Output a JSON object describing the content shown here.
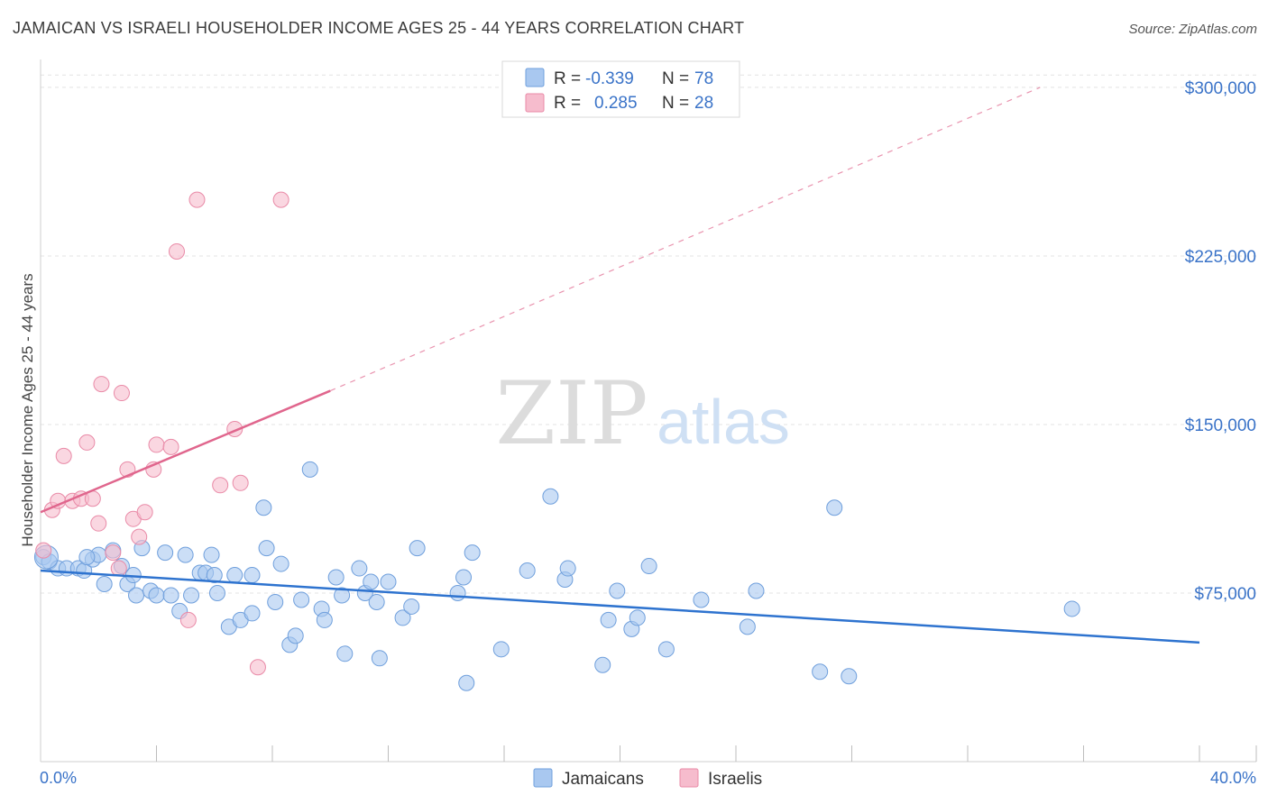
{
  "title": "JAMAICAN VS ISRAELI HOUSEHOLDER INCOME AGES 25 - 44 YEARS CORRELATION CHART",
  "source": "Source: ZipAtlas.com",
  "watermark": {
    "zip": "ZIP",
    "atlas": "atlas"
  },
  "colors": {
    "jamaican_fill": "#a9c8f0",
    "jamaican_stroke": "#6f9fdc",
    "jamaican_line": "#2e73cf",
    "israeli_fill": "#f6bccd",
    "israeli_stroke": "#e98aa7",
    "israeli_line": "#e0668d",
    "axis_label": "#3a73c8",
    "grid": "#e3e3e3"
  },
  "legend": {
    "rows": [
      {
        "r_label": "R =",
        "r_value": "-0.339",
        "n_label": "N =",
        "n_value": "78"
      },
      {
        "r_label": "R =",
        "r_value": "0.285",
        "n_label": "N =",
        "n_value": "28"
      }
    ]
  },
  "chart_data": {
    "type": "scatter",
    "title": "JAMAICAN VS ISRAELI HOUSEHOLDER INCOME AGES 25 - 44 YEARS CORRELATION CHART",
    "xlabel": "",
    "ylabel": "Householder Income Ages 25 - 44 years",
    "xlim": [
      0,
      40
    ],
    "ylim": [
      0,
      310000
    ],
    "x_tick_labels": [
      {
        "value": 0,
        "label": "0.0%"
      },
      {
        "value": 40,
        "label": "40.0%"
      }
    ],
    "y_tick_labels": [
      {
        "value": 75000,
        "label": "$75,000"
      },
      {
        "value": 150000,
        "label": "$150,000"
      },
      {
        "value": 225000,
        "label": "$225,000"
      },
      {
        "value": 300000,
        "label": "$300,000"
      }
    ],
    "legend_position": "bottom-center",
    "series": [
      {
        "name": "Jamaicans",
        "r": -0.339,
        "n": 78,
        "trend": {
          "x0": 0,
          "y0": 85000,
          "x1": 40,
          "y1": 53000
        },
        "points": [
          [
            0.1,
            91000
          ],
          [
            0.3,
            89000
          ],
          [
            0.6,
            86000
          ],
          [
            0.9,
            86000
          ],
          [
            1.3,
            86000
          ],
          [
            1.5,
            85000
          ],
          [
            1.8,
            90000
          ],
          [
            2.0,
            92000
          ],
          [
            2.2,
            79000
          ],
          [
            2.5,
            94000
          ],
          [
            2.8,
            87000
          ],
          [
            3.0,
            79000
          ],
          [
            3.3,
            74000
          ],
          [
            3.5,
            95000
          ],
          [
            3.8,
            76000
          ],
          [
            4.0,
            74000
          ],
          [
            4.3,
            93000
          ],
          [
            4.5,
            74000
          ],
          [
            4.8,
            67000
          ],
          [
            5.0,
            92000
          ],
          [
            5.2,
            74000
          ],
          [
            5.5,
            84000
          ],
          [
            5.7,
            84000
          ],
          [
            5.9,
            92000
          ],
          [
            6.1,
            75000
          ],
          [
            6.5,
            60000
          ],
          [
            6.7,
            83000
          ],
          [
            6.9,
            63000
          ],
          [
            7.3,
            66000
          ],
          [
            7.3,
            83000
          ],
          [
            7.7,
            113000
          ],
          [
            7.8,
            95000
          ],
          [
            8.3,
            88000
          ],
          [
            8.1,
            71000
          ],
          [
            8.6,
            52000
          ],
          [
            8.8,
            56000
          ],
          [
            9.0,
            72000
          ],
          [
            9.3,
            130000
          ],
          [
            9.7,
            68000
          ],
          [
            9.8,
            63000
          ],
          [
            10.2,
            82000
          ],
          [
            10.4,
            74000
          ],
          [
            10.5,
            48000
          ],
          [
            11.0,
            86000
          ],
          [
            11.2,
            75000
          ],
          [
            11.4,
            80000
          ],
          [
            11.6,
            71000
          ],
          [
            11.7,
            46000
          ],
          [
            12.0,
            80000
          ],
          [
            12.5,
            64000
          ],
          [
            12.8,
            69000
          ],
          [
            13.0,
            95000
          ],
          [
            14.4,
            75000
          ],
          [
            14.6,
            82000
          ],
          [
            14.7,
            35000
          ],
          [
            14.9,
            93000
          ],
          [
            15.9,
            50000
          ],
          [
            16.8,
            85000
          ],
          [
            17.6,
            118000
          ],
          [
            18.1,
            81000
          ],
          [
            18.2,
            86000
          ],
          [
            19.4,
            43000
          ],
          [
            19.6,
            63000
          ],
          [
            19.9,
            76000
          ],
          [
            20.4,
            59000
          ],
          [
            20.6,
            64000
          ],
          [
            21.0,
            87000
          ],
          [
            21.6,
            50000
          ],
          [
            22.8,
            72000
          ],
          [
            24.4,
            60000
          ],
          [
            24.7,
            76000
          ],
          [
            26.9,
            40000
          ],
          [
            27.4,
            113000
          ],
          [
            27.9,
            38000
          ],
          [
            35.6,
            68000
          ],
          [
            1.6,
            91000
          ],
          [
            3.2,
            83000
          ],
          [
            6.0,
            83000
          ]
        ]
      },
      {
        "name": "Israelis",
        "r": 0.285,
        "n": 28,
        "trend": {
          "x0": 0,
          "y0": 111000,
          "x1": 10,
          "y1": 165000,
          "ext_x1": 34.5,
          "ext_y1": 300000
        },
        "points": [
          [
            0.1,
            94000
          ],
          [
            0.4,
            112000
          ],
          [
            0.6,
            116000
          ],
          [
            0.8,
            136000
          ],
          [
            1.1,
            116000
          ],
          [
            1.4,
            117000
          ],
          [
            1.6,
            142000
          ],
          [
            1.8,
            117000
          ],
          [
            2.0,
            106000
          ],
          [
            2.1,
            168000
          ],
          [
            2.5,
            93000
          ],
          [
            2.7,
            86000
          ],
          [
            2.8,
            164000
          ],
          [
            3.0,
            130000
          ],
          [
            3.2,
            108000
          ],
          [
            3.4,
            100000
          ],
          [
            3.6,
            111000
          ],
          [
            3.9,
            130000
          ],
          [
            4.0,
            141000
          ],
          [
            4.5,
            140000
          ],
          [
            4.7,
            227000
          ],
          [
            5.1,
            63000
          ],
          [
            5.4,
            250000
          ],
          [
            6.2,
            123000
          ],
          [
            6.7,
            148000
          ],
          [
            6.9,
            124000
          ],
          [
            7.5,
            42000
          ],
          [
            8.3,
            250000
          ]
        ]
      }
    ]
  },
  "axis_labels": {
    "x_min": "0.0%",
    "x_max": "40.0%"
  },
  "bottom_legend": {
    "items": [
      "Jamaicans",
      "Israelis"
    ]
  }
}
